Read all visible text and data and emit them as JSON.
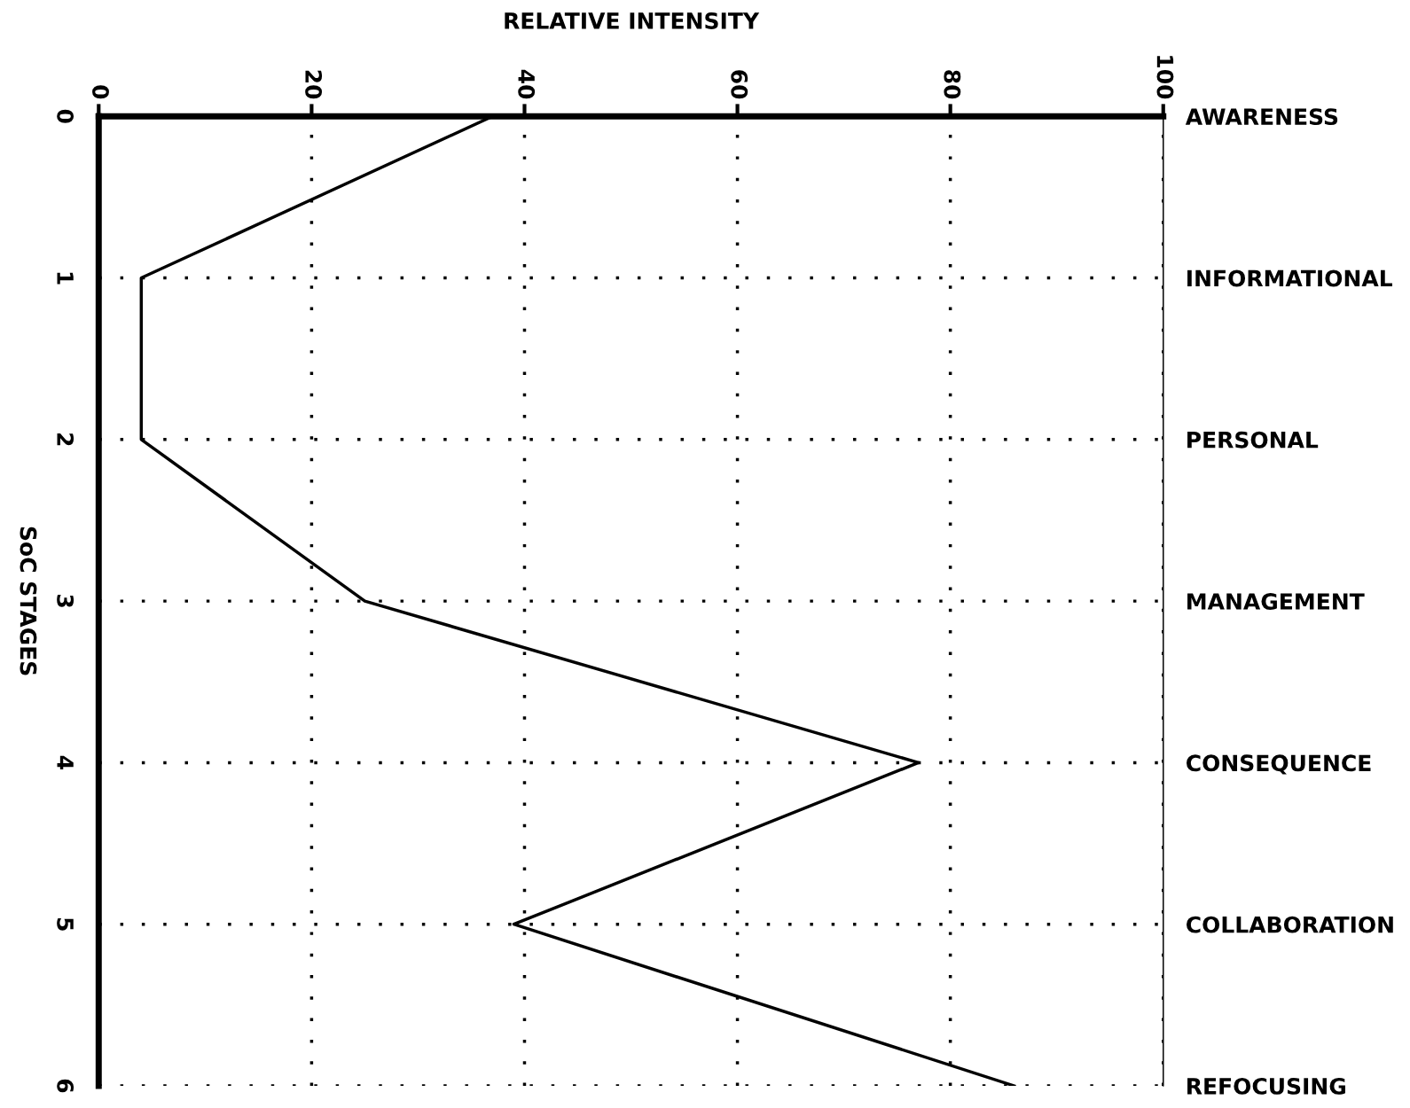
{
  "chart_data": {
    "type": "line",
    "orientation": "horizontal",
    "xlabel": "RELATIVE INTENSITY",
    "ylabel": "SoC STAGES",
    "categories": [
      "0",
      "1",
      "2",
      "3",
      "4",
      "5",
      "6"
    ],
    "series": [
      {
        "color": "#000000",
        "values": [
          37,
          4,
          4,
          25,
          77,
          39,
          86
        ]
      }
    ],
    "xlim": [
      0,
      100
    ],
    "xticks": [
      0,
      20,
      40,
      60,
      80,
      100
    ],
    "y2_categories": [
      "AWARENESS",
      "INFORMATIONAL",
      "PERSONAL",
      "MANAGEMENT",
      "CONSEQUENCE",
      "COLLABORATION",
      "REFOCUSING"
    ],
    "grid": true,
    "line_style": "solid"
  }
}
